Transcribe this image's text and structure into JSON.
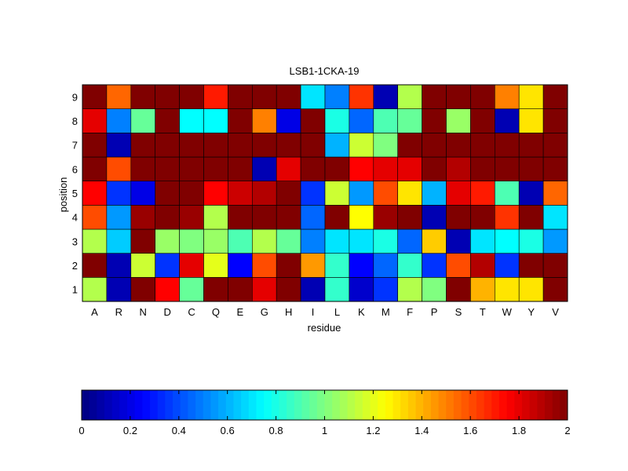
{
  "chart_data": {
    "type": "heatmap",
    "title": "LSB1-1CKA-19",
    "xlabel": "residue",
    "ylabel": "position",
    "x_categories": [
      "A",
      "R",
      "N",
      "D",
      "C",
      "Q",
      "E",
      "G",
      "H",
      "I",
      "L",
      "K",
      "M",
      "F",
      "P",
      "S",
      "T",
      "W",
      "Y",
      "V"
    ],
    "y_categories": [
      "1",
      "2",
      "3",
      "4",
      "5",
      "6",
      "7",
      "8",
      "9"
    ],
    "value_range": [
      0,
      2
    ],
    "colormap": "jet",
    "grid": true,
    "colorbar": {
      "placement": "bottom",
      "ticks": [
        0,
        0.2,
        0.4,
        0.6,
        0.8,
        1,
        1.2,
        1.4,
        1.6,
        1.8,
        2
      ],
      "tick_labels": [
        "0",
        "0.2",
        "0.4",
        "0.6",
        "0.8",
        "1",
        "1.2",
        "1.4",
        "1.6",
        "1.8",
        "2"
      ]
    },
    "values_by_position": {
      "1": [
        1.1,
        0.1,
        2.0,
        1.75,
        0.95,
        2.0,
        2.0,
        1.8,
        2.0,
        0.1,
        0.85,
        0.15,
        0.35,
        1.1,
        1.0,
        2.0,
        1.4,
        1.3,
        1.3,
        2.0
      ],
      "2": [
        2.0,
        0.1,
        1.15,
        0.35,
        1.8,
        1.2,
        0.25,
        1.6,
        2.0,
        1.45,
        0.85,
        0.25,
        0.45,
        0.85,
        0.35,
        1.6,
        1.9,
        0.35,
        2.0,
        2.0
      ],
      "3": [
        1.1,
        0.65,
        2.0,
        1.05,
        1.0,
        1.05,
        0.9,
        1.1,
        0.95,
        0.5,
        0.7,
        0.7,
        0.8,
        0.45,
        1.35,
        0.1,
        0.7,
        0.75,
        0.8,
        0.55
      ],
      "4": [
        1.6,
        0.55,
        1.95,
        2.0,
        1.95,
        1.1,
        2.0,
        2.0,
        2.0,
        0.45,
        2.0,
        1.25,
        1.95,
        2.0,
        0.1,
        2.0,
        2.0,
        1.65,
        2.0,
        0.7
      ],
      "5": [
        1.75,
        0.35,
        0.2,
        2.0,
        2.0,
        1.75,
        1.85,
        1.9,
        2.0,
        0.35,
        1.15,
        0.55,
        1.6,
        1.3,
        0.6,
        1.8,
        1.7,
        0.9,
        0.1,
        1.55
      ],
      "6": [
        2.0,
        1.6,
        2.0,
        2.0,
        2.0,
        2.0,
        2.0,
        0.1,
        1.8,
        2.0,
        2.0,
        1.75,
        1.8,
        1.8,
        2.0,
        1.9,
        2.0,
        2.0,
        2.0,
        2.0
      ],
      "7": [
        2.0,
        0.1,
        2.0,
        2.0,
        2.0,
        2.0,
        2.0,
        2.0,
        2.0,
        2.0,
        0.6,
        1.15,
        1.0,
        2.0,
        2.0,
        2.0,
        2.0,
        2.0,
        2.0,
        2.0
      ],
      "8": [
        1.8,
        0.5,
        0.95,
        2.0,
        0.75,
        0.75,
        2.0,
        1.5,
        0.2,
        2.0,
        0.8,
        0.45,
        0.9,
        0.95,
        2.0,
        1.05,
        2.0,
        0.1,
        1.3,
        2.0
      ],
      "9": [
        2.0,
        1.55,
        2.0,
        2.0,
        2.0,
        1.7,
        2.0,
        2.0,
        2.0,
        0.7,
        0.5,
        1.65,
        0.1,
        1.1,
        2.0,
        2.0,
        2.0,
        1.5,
        1.3,
        2.0
      ]
    }
  }
}
